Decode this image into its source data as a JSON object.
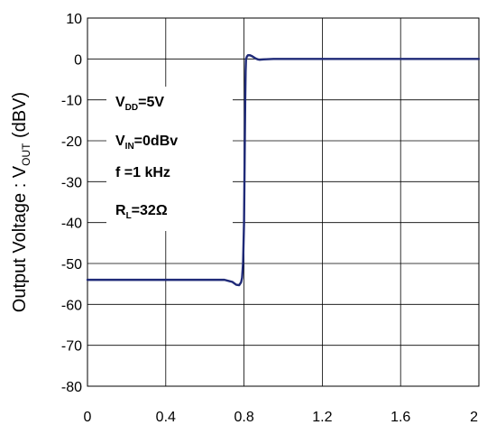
{
  "chart_data": {
    "type": "line",
    "xlim": [
      0,
      2
    ],
    "ylim": [
      -80,
      10
    ],
    "xticks": [
      "0",
      "0.4",
      "0.8",
      "1.2",
      "1.6",
      "2"
    ],
    "yticks": [
      "10",
      "0",
      "-10",
      "-20",
      "-30",
      "-40",
      "-50",
      "-60",
      "-70",
      "-80"
    ],
    "ylabel": {
      "pre": "Output Voltage : V",
      "sub": "OUT",
      "post": " (dBV)"
    },
    "xlabel": "",
    "grid": true,
    "series_color": "#1f2a78",
    "annotations": [
      {
        "main": "V",
        "sub": "DD",
        "post": "=5V"
      },
      {
        "main": "V",
        "sub": "IN",
        "post": "=0dBv"
      },
      {
        "main": "f =1 kHz",
        "sub": "",
        "post": ""
      },
      {
        "main": "R",
        "sub": "L",
        "post": "=32Ω"
      }
    ],
    "series": [
      {
        "x": [
          0,
          0.6,
          0.7,
          0.74,
          0.76,
          0.775,
          0.785,
          0.79,
          0.795,
          0.8,
          0.803,
          0.806,
          0.808,
          0.81,
          0.815,
          0.82,
          0.83,
          0.84,
          0.85,
          0.86,
          0.87,
          0.88,
          0.9,
          0.95,
          1.0,
          1.5,
          2.0
        ],
        "y": [
          -54,
          -54,
          -54,
          -54.5,
          -55.2,
          -55.3,
          -54.6,
          -53.5,
          -50,
          -40,
          -25,
          -10,
          -3,
          0,
          0.6,
          0.9,
          0.9,
          0.7,
          0.4,
          0.1,
          -0.1,
          -0.2,
          -0.1,
          0,
          0,
          0,
          0
        ]
      }
    ]
  }
}
